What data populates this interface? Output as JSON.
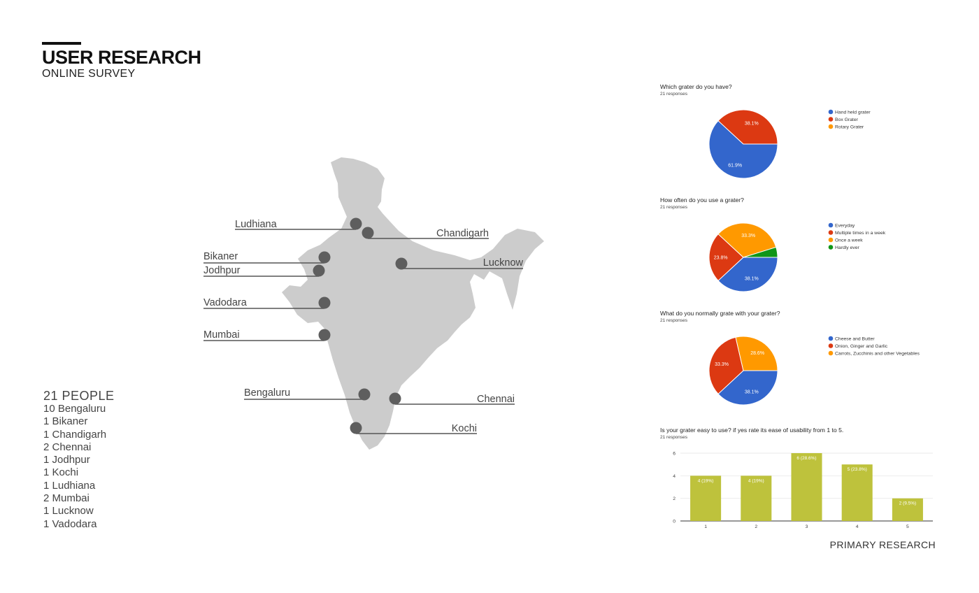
{
  "header": {
    "title": "USER RESEARCH",
    "subtitle": "ONLINE SURVEY"
  },
  "people": {
    "heading": "21 PEOPLE",
    "cities": [
      "10 Bengaluru",
      "1 Bikaner",
      "1 Chandigarh",
      "2 Chennai",
      "1 Jodhpur",
      "1 Kochi",
      "1 Ludhiana",
      "2 Mumbai",
      "1 Lucknow",
      "1 Vadodara"
    ]
  },
  "map": {
    "color": "#cccccc",
    "marker_color": "#5e5e5e",
    "labels": [
      "Ludhiana",
      "Chandigarh",
      "Bikaner",
      "Jodhpur",
      "Lucknow",
      "Vadodara",
      "Mumbai",
      "Bengaluru",
      "Chennai",
      "Kochi"
    ]
  },
  "footer": "PRIMARY RESEARCH",
  "colors": {
    "blue": "#3366cc",
    "red": "#dc3912",
    "orange": "#ff9900",
    "green": "#109618",
    "olive": "#bec23c"
  },
  "chart_data": [
    {
      "type": "pie",
      "title": "Which grater do you have?",
      "subtitle": "21 responses",
      "labels": [
        "Hand held grater",
        "Box Grater",
        "Rotary Grater"
      ],
      "values": [
        61.9,
        38.1,
        0
      ],
      "display": [
        "61.9%",
        "38.1%",
        ""
      ],
      "colors": [
        "#3366cc",
        "#dc3912",
        "#ff9900"
      ],
      "legend": "right"
    },
    {
      "type": "pie",
      "title": "How often do you use a grater?",
      "subtitle": "21 responses",
      "labels": [
        "Everyday",
        "Multiple times in a week",
        "Once a week",
        "Hardly ever"
      ],
      "values": [
        38.1,
        23.8,
        33.3,
        4.8
      ],
      "display": [
        "38.1%",
        "23.8%",
        "33.3%",
        ""
      ],
      "colors": [
        "#3366cc",
        "#dc3912",
        "#ff9900",
        "#109618"
      ],
      "legend": "right"
    },
    {
      "type": "pie",
      "title": "What do you normally grate with your grater?",
      "subtitle": "21 responses",
      "labels": [
        "Cheese and Butter",
        "Onion, Ginger and Garlic",
        "Carrots, Zucchinis and other Vegetables"
      ],
      "values": [
        38.1,
        33.3,
        28.6
      ],
      "display": [
        "38.1%",
        "33.3%",
        "28.6%"
      ],
      "colors": [
        "#3366cc",
        "#dc3912",
        "#ff9900"
      ],
      "legend": "right"
    },
    {
      "type": "bar",
      "title": "Is your grater easy to use? if yes rate its ease of usability from 1 to 5.",
      "subtitle": "21 responses",
      "categories": [
        "1",
        "2",
        "3",
        "4",
        "5"
      ],
      "values": [
        4,
        4,
        6,
        5,
        2
      ],
      "data_labels": [
        "4 (19%)",
        "4 (19%)",
        "6 (28.6%)",
        "5 (23.8%)",
        "2 (9.5%)"
      ],
      "yticks": [
        "0",
        "2",
        "4",
        "6"
      ],
      "ylim": [
        0,
        6
      ],
      "color": "#bec23c",
      "grid": true
    }
  ]
}
